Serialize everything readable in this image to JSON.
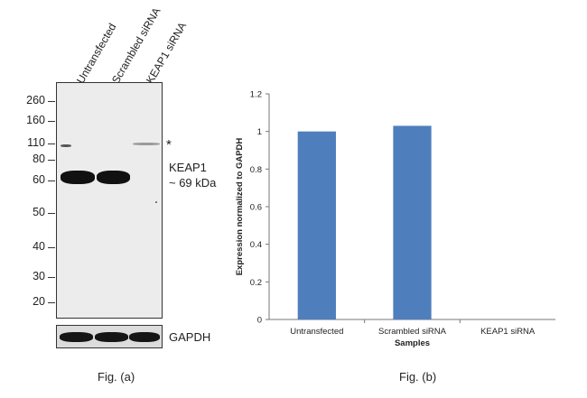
{
  "figure_a": {
    "lanes": [
      "Untransfected",
      "Scrambled siRNA",
      "KEAP1 siRNA"
    ],
    "mw_markers": [
      "260",
      "160",
      "110",
      "80",
      "60",
      "50",
      "40",
      "30",
      "20"
    ],
    "asterisk": "*",
    "band_label_line1": "KEAP1",
    "band_label_line2": "~ 69 kDa",
    "loading_control": "GAPDH",
    "caption": "Fig. (a)"
  },
  "figure_b": {
    "caption": "Fig. (b)"
  },
  "chart_data": {
    "type": "bar",
    "title": "",
    "categories": [
      "Untransfected",
      "Scrambled siRNA",
      "KEAP1 siRNA"
    ],
    "values": [
      1.0,
      1.03,
      0.0
    ],
    "xlabel": "Samples",
    "ylabel": "Expression normalized to GAPDH",
    "ylim": [
      0,
      1.2
    ],
    "yticks": [
      0,
      0.2,
      0.4,
      0.6,
      0.8,
      1,
      1.2
    ],
    "ytick_labels": [
      "0",
      "0.2",
      "0.4",
      "0.6",
      "0.8",
      "1",
      "1.2"
    ],
    "bar_color": "#4f7ebc",
    "grid": false,
    "legend": "none"
  }
}
